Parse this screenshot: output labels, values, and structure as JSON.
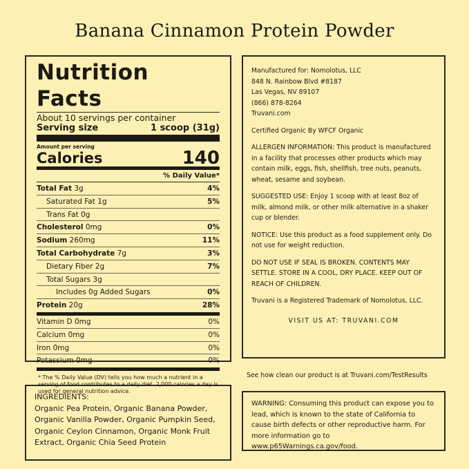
{
  "title": "Banana Cinnamon Protein Powder",
  "nutrition": {
    "heading": "Nutrition Facts",
    "servings": "About 10 servings per container",
    "serving_size_label": "Serving size",
    "serving_size_value": "1 scoop (31g)",
    "amount_per_serving": "Amount per serving",
    "calories_label": "Calories",
    "calories_value": "140",
    "dv_header": "% Daily Value*",
    "rows": [
      {
        "label": "Total Fat",
        "amount": "3g",
        "dv": "4%"
      },
      {
        "label": "Saturated Fat",
        "amount": "1g",
        "dv": "5%"
      },
      {
        "label": "Trans Fat",
        "amount": "0g",
        "dv": ""
      },
      {
        "label": "Cholesterol",
        "amount": "0mg",
        "dv": "0%"
      },
      {
        "label": "Sodium",
        "amount": "260mg",
        "dv": "11%"
      },
      {
        "label": "Total Carbohydrate",
        "amount": "7g",
        "dv": "3%"
      },
      {
        "label": "Dietary Fiber",
        "amount": "2g",
        "dv": "7%"
      },
      {
        "label": "Total Sugars",
        "amount": "3g",
        "dv": ""
      },
      {
        "label": "Includes 0g Added Sugars",
        "amount": "",
        "dv": "0%"
      },
      {
        "label": "Protein",
        "amount": "20g",
        "dv": "28%"
      }
    ],
    "vitamins": [
      {
        "label": "Vitamin D",
        "amount": "0mg",
        "dv": "0%"
      },
      {
        "label": "Calcium",
        "amount": "0mg",
        "dv": "0%"
      },
      {
        "label": "Iron",
        "amount": "0mg",
        "dv": "0%"
      },
      {
        "label": "Potassium",
        "amount": "0mg",
        "dv": "0%"
      }
    ],
    "footnote": "* The % Daily Value (DV) tells you how much a nutrient in a serving of food contributes to a daily diet. 2,000 calories a day is used for general nutrition advice."
  },
  "info": {
    "manufacturer": [
      "Manufactured for: Nomolotus, LLC",
      "848 N. Rainbow Blvd #8187",
      "Las Vegas, NV 89107",
      "(866) 878-8264",
      "Truvani.com"
    ],
    "certified": "Certified Organic By WFCF Organic",
    "allergen": "ALLERGEN INFORMATION: This product is manufactured in a facility that processes other products which may contain milk, eggs, fish, shellfish, tree nuts, peanuts, wheat, sesame and soybean.",
    "suggested": "SUGGESTED USE: Enjoy 1 scoop with at least 8oz of milk, almond milk, or other milk alternative in a shaker cup or blender.",
    "notice": "NOTICE: Use this product as a food supplement only. Do not use for weight reduction.",
    "seal": "DO NOT USE IF SEAL IS BROKEN. CONTENTS MAY SETTLE. STORE IN A COOL, DRY PLACE. KEEP OUT OF REACH OF CHILDREN.",
    "trademark": "Truvani is a Registered Trademark of Nomolotus, LLC.",
    "visit": "VISIT US AT: TRUVANI.COM"
  },
  "test_results": "See how clean our product is at Truvani.com/TestResults",
  "ingredients": {
    "heading": "INGREDIENTS:",
    "text": "Organic Pea Protein, Organic Banana Powder, Organic Vanilla Powder, Organic Pumpkin Seed, Organic Ceylon Cinnamon, Organic Monk Fruit Extract, Organic Chia Seed Protein"
  },
  "warning": "WARNING: Consuming this product can expose you to lead, which is known to the state of California to cause birth defects or other reproductive harm. For more information go to www.p65Warnings.ca.gov/food."
}
